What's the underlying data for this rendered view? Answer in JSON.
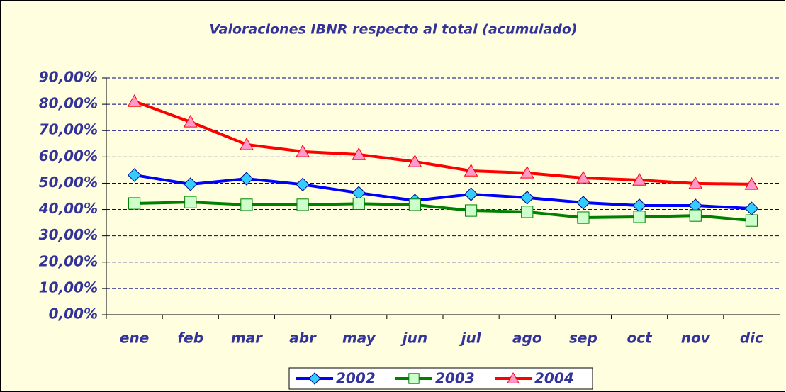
{
  "chart_data": {
    "type": "line",
    "title": "Valoraciones IBNR respecto al total (acumulado)",
    "categories": [
      "ene",
      "feb",
      "mar",
      "abr",
      "may",
      "jun",
      "jul",
      "ago",
      "sep",
      "oct",
      "nov",
      "dic"
    ],
    "series": [
      {
        "name": "2002",
        "color": "#0000ff",
        "marker": "diamond",
        "marker_color": "#33ccff",
        "values": [
          53.1,
          49.6,
          51.7,
          49.5,
          46.3,
          43.4,
          45.8,
          44.5,
          42.6,
          41.5,
          41.5,
          40.4
        ]
      },
      {
        "name": "2003",
        "color": "#008000",
        "marker": "square",
        "marker_color": "#ccffcc",
        "values": [
          42.3,
          42.8,
          41.8,
          41.8,
          42.2,
          41.8,
          39.6,
          39.1,
          36.9,
          37.2,
          37.7,
          35.8
        ]
      },
      {
        "name": "2004",
        "color": "#ff0000",
        "marker": "triangle",
        "marker_color": "#ff99cc",
        "values": [
          81.1,
          73.3,
          64.7,
          62.0,
          60.9,
          58.2,
          54.7,
          53.9,
          52.0,
          51.2,
          49.9,
          49.6
        ]
      }
    ],
    "ylim": [
      0,
      90
    ],
    "yticks": [
      {
        "value": 0,
        "label": "0,00%"
      },
      {
        "value": 10,
        "label": "10,00%"
      },
      {
        "value": 20,
        "label": "20,00%"
      },
      {
        "value": 30,
        "label": "30,00%"
      },
      {
        "value": 40,
        "label": "40,00%"
      },
      {
        "value": 50,
        "label": "50,00%"
      },
      {
        "value": 60,
        "label": "60,00%"
      },
      {
        "value": 70,
        "label": "70,00%"
      },
      {
        "value": 80,
        "label": "80,00%"
      },
      {
        "value": 90,
        "label": "90,00%"
      }
    ],
    "grid": true,
    "legend": "bottom"
  }
}
